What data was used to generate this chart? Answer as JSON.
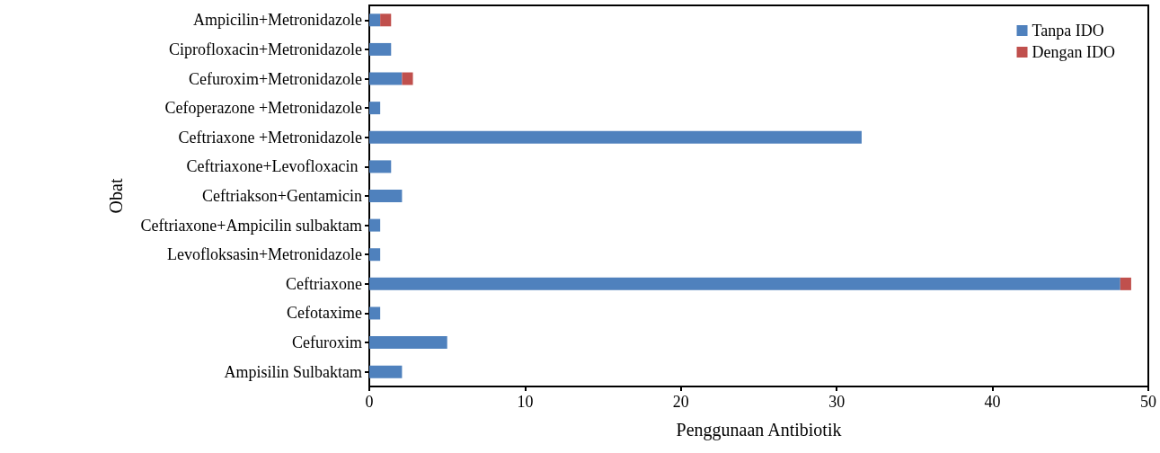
{
  "chart_data": {
    "type": "bar",
    "orientation": "horizontal",
    "stacked": true,
    "xlabel": "Penggunaan Antibiotik",
    "ylabel": "Obat",
    "categories": [
      "Ampicilin+Metronidazole",
      "Ciprofloxacin+Metronidazole",
      "Cefuroxim+Metronidazole",
      "Cefoperazone +Metronidazole",
      "Ceftriaxone +Metronidazole",
      "Ceftriaxone+Levofloxacin ",
      "Ceftriakson+Gentamicin",
      "Ceftriaxone+Ampicilin sulbaktam",
      "Levofloksasin+Metronidazole",
      "Ceftriaxone",
      "Cefotaxime",
      "Cefuroxim",
      "Ampisilin Sulbaktam"
    ],
    "series": [
      {
        "name": "Tanpa IDO",
        "color": "#4f81bd",
        "values": [
          0.7,
          1.4,
          2.1,
          0.7,
          31.6,
          1.4,
          2.1,
          0.7,
          0.7,
          48.2,
          0.7,
          5.0,
          2.1
        ]
      },
      {
        "name": "Dengan IDO",
        "color": "#c0504d",
        "values": [
          0.7,
          null,
          0.7,
          null,
          null,
          null,
          null,
          null,
          null,
          0.7,
          null,
          null,
          null
        ]
      }
    ],
    "xlim": [
      0,
      50
    ],
    "xticks": [
      0,
      10,
      20,
      30,
      40,
      50
    ],
    "grid": false,
    "legend": "top right"
  }
}
